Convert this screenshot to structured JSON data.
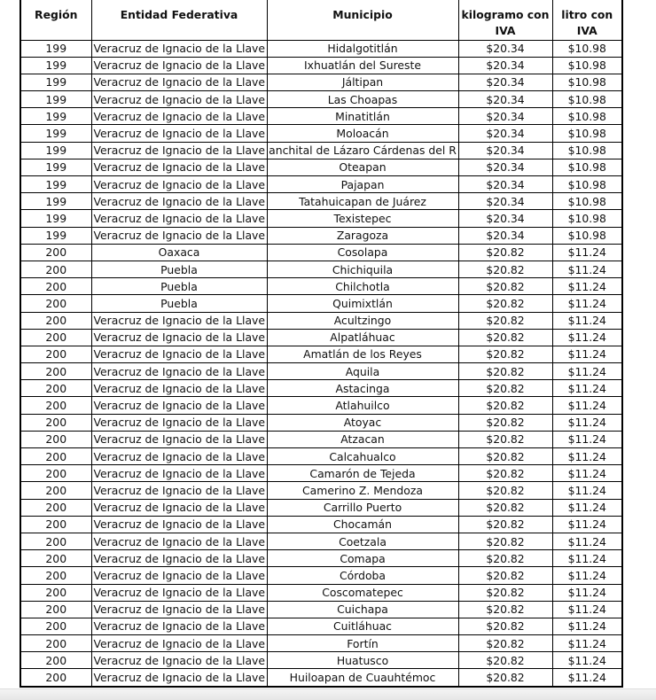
{
  "headers": {
    "region": "Región",
    "entidad": "Entidad Federativa",
    "municipio": "Municipio",
    "kg": "kilogramo con",
    "kg2": "IVA",
    "litro": "litro con",
    "litro2": "IVA"
  },
  "rows": [
    [
      "199",
      "Veracruz de Ignacio de la Llave",
      "Hidalgotitlán",
      "$20.34",
      "$10.98"
    ],
    [
      "199",
      "Veracruz de Ignacio de la Llave",
      "Ixhuatlán del Sureste",
      "$20.34",
      "$10.98"
    ],
    [
      "199",
      "Veracruz de Ignacio de la Llave",
      "Jáltipan",
      "$20.34",
      "$10.98"
    ],
    [
      "199",
      "Veracruz de Ignacio de la Llave",
      "Las Choapas",
      "$20.34",
      "$10.98"
    ],
    [
      "199",
      "Veracruz de Ignacio de la Llave",
      "Minatitlán",
      "$20.34",
      "$10.98"
    ],
    [
      "199",
      "Veracruz de Ignacio de la Llave",
      "Moloacán",
      "$20.34",
      "$10.98"
    ],
    [
      "199",
      "Veracruz de Ignacio de la Llave",
      "anchital de Lázaro Cárdenas del R",
      "$20.34",
      "$10.98"
    ],
    [
      "199",
      "Veracruz de Ignacio de la Llave",
      "Oteapan",
      "$20.34",
      "$10.98"
    ],
    [
      "199",
      "Veracruz de Ignacio de la Llave",
      "Pajapan",
      "$20.34",
      "$10.98"
    ],
    [
      "199",
      "Veracruz de Ignacio de la Llave",
      "Tatahuicapan de Juárez",
      "$20.34",
      "$10.98"
    ],
    [
      "199",
      "Veracruz de Ignacio de la Llave",
      "Texistepec",
      "$20.34",
      "$10.98"
    ],
    [
      "199",
      "Veracruz de Ignacio de la Llave",
      "Zaragoza",
      "$20.34",
      "$10.98"
    ],
    [
      "200",
      "Oaxaca",
      "Cosolapa",
      "$20.82",
      "$11.24"
    ],
    [
      "200",
      "Puebla",
      "Chichiquila",
      "$20.82",
      "$11.24"
    ],
    [
      "200",
      "Puebla",
      "Chilchotla",
      "$20.82",
      "$11.24"
    ],
    [
      "200",
      "Puebla",
      "Quimixtlán",
      "$20.82",
      "$11.24"
    ],
    [
      "200",
      "Veracruz de Ignacio de la Llave",
      "Acultzingo",
      "$20.82",
      "$11.24"
    ],
    [
      "200",
      "Veracruz de Ignacio de la Llave",
      "Alpatláhuac",
      "$20.82",
      "$11.24"
    ],
    [
      "200",
      "Veracruz de Ignacio de la Llave",
      "Amatlán de los Reyes",
      "$20.82",
      "$11.24"
    ],
    [
      "200",
      "Veracruz de Ignacio de la Llave",
      "Aquila",
      "$20.82",
      "$11.24"
    ],
    [
      "200",
      "Veracruz de Ignacio de la Llave",
      "Astacinga",
      "$20.82",
      "$11.24"
    ],
    [
      "200",
      "Veracruz de Ignacio de la Llave",
      "Atlahuilco",
      "$20.82",
      "$11.24"
    ],
    [
      "200",
      "Veracruz de Ignacio de la Llave",
      "Atoyac",
      "$20.82",
      "$11.24"
    ],
    [
      "200",
      "Veracruz de Ignacio de la Llave",
      "Atzacan",
      "$20.82",
      "$11.24"
    ],
    [
      "200",
      "Veracruz de Ignacio de la Llave",
      "Calcahualco",
      "$20.82",
      "$11.24"
    ],
    [
      "200",
      "Veracruz de Ignacio de la Llave",
      "Camarón de Tejeda",
      "$20.82",
      "$11.24"
    ],
    [
      "200",
      "Veracruz de Ignacio de la Llave",
      "Camerino Z. Mendoza",
      "$20.82",
      "$11.24"
    ],
    [
      "200",
      "Veracruz de Ignacio de la Llave",
      "Carrillo Puerto",
      "$20.82",
      "$11.24"
    ],
    [
      "200",
      "Veracruz de Ignacio de la Llave",
      "Chocamán",
      "$20.82",
      "$11.24"
    ],
    [
      "200",
      "Veracruz de Ignacio de la Llave",
      "Coetzala",
      "$20.82",
      "$11.24"
    ],
    [
      "200",
      "Veracruz de Ignacio de la Llave",
      "Comapa",
      "$20.82",
      "$11.24"
    ],
    [
      "200",
      "Veracruz de Ignacio de la Llave",
      "Córdoba",
      "$20.82",
      "$11.24"
    ],
    [
      "200",
      "Veracruz de Ignacio de la Llave",
      "Coscomatepec",
      "$20.82",
      "$11.24"
    ],
    [
      "200",
      "Veracruz de Ignacio de la Llave",
      "Cuichapa",
      "$20.82",
      "$11.24"
    ],
    [
      "200",
      "Veracruz de Ignacio de la Llave",
      "Cuitláhuac",
      "$20.82",
      "$11.24"
    ],
    [
      "200",
      "Veracruz de Ignacio de la Llave",
      "Fortín",
      "$20.82",
      "$11.24"
    ],
    [
      "200",
      "Veracruz de Ignacio de la Llave",
      "Huatusco",
      "$20.82",
      "$11.24"
    ],
    [
      "200",
      "Veracruz de Ignacio de la Llave",
      "Huiloapan de Cuauhtémoc",
      "$20.82",
      "$11.24"
    ]
  ]
}
